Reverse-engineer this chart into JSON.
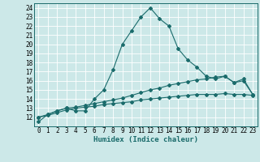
{
  "title": "",
  "xlabel": "Humidex (Indice chaleur)",
  "bg_color": "#cce8e8",
  "grid_color": "#ffffff",
  "line_color": "#1a6b6b",
  "xlim": [
    -0.5,
    23.5
  ],
  "ylim": [
    11,
    24.5
  ],
  "xticks": [
    0,
    1,
    2,
    3,
    4,
    5,
    6,
    7,
    8,
    9,
    10,
    11,
    12,
    13,
    14,
    15,
    16,
    17,
    18,
    19,
    20,
    21,
    22,
    23
  ],
  "yticks": [
    12,
    13,
    14,
    15,
    16,
    17,
    18,
    19,
    20,
    21,
    22,
    23,
    24
  ],
  "line1_x": [
    0,
    1,
    2,
    3,
    4,
    5,
    6,
    7,
    8,
    9,
    10,
    11,
    12,
    13,
    14,
    15,
    16,
    17,
    18,
    19,
    20,
    21,
    22,
    23
  ],
  "line1_y": [
    11.5,
    12.3,
    12.7,
    13.0,
    12.7,
    12.7,
    14.0,
    15.0,
    17.2,
    20.0,
    21.5,
    23.0,
    24.0,
    22.8,
    22.0,
    19.5,
    18.3,
    17.5,
    16.5,
    16.2,
    16.5,
    15.8,
    16.2,
    14.5
  ],
  "line2_x": [
    0,
    1,
    2,
    3,
    4,
    5,
    6,
    7,
    8,
    9,
    10,
    11,
    12,
    13,
    14,
    15,
    16,
    17,
    18,
    19,
    20,
    21,
    22,
    23
  ],
  "line2_y": [
    12.0,
    12.3,
    12.7,
    13.0,
    13.1,
    13.3,
    13.5,
    13.7,
    13.9,
    14.1,
    14.4,
    14.7,
    15.0,
    15.2,
    15.5,
    15.7,
    15.9,
    16.1,
    16.2,
    16.4,
    16.5,
    15.8,
    16.0,
    14.5
  ],
  "line3_x": [
    0,
    1,
    2,
    3,
    4,
    5,
    6,
    7,
    8,
    9,
    10,
    11,
    12,
    13,
    14,
    15,
    16,
    17,
    18,
    19,
    20,
    21,
    22,
    23
  ],
  "line3_y": [
    12.0,
    12.2,
    12.5,
    12.8,
    13.0,
    13.1,
    13.2,
    13.4,
    13.5,
    13.6,
    13.7,
    13.9,
    14.0,
    14.1,
    14.2,
    14.3,
    14.4,
    14.5,
    14.5,
    14.5,
    14.6,
    14.5,
    14.5,
    14.4
  ],
  "tick_fontsize": 5.5,
  "xlabel_fontsize": 6.5,
  "marker_size": 2.0,
  "line_width": 0.8
}
